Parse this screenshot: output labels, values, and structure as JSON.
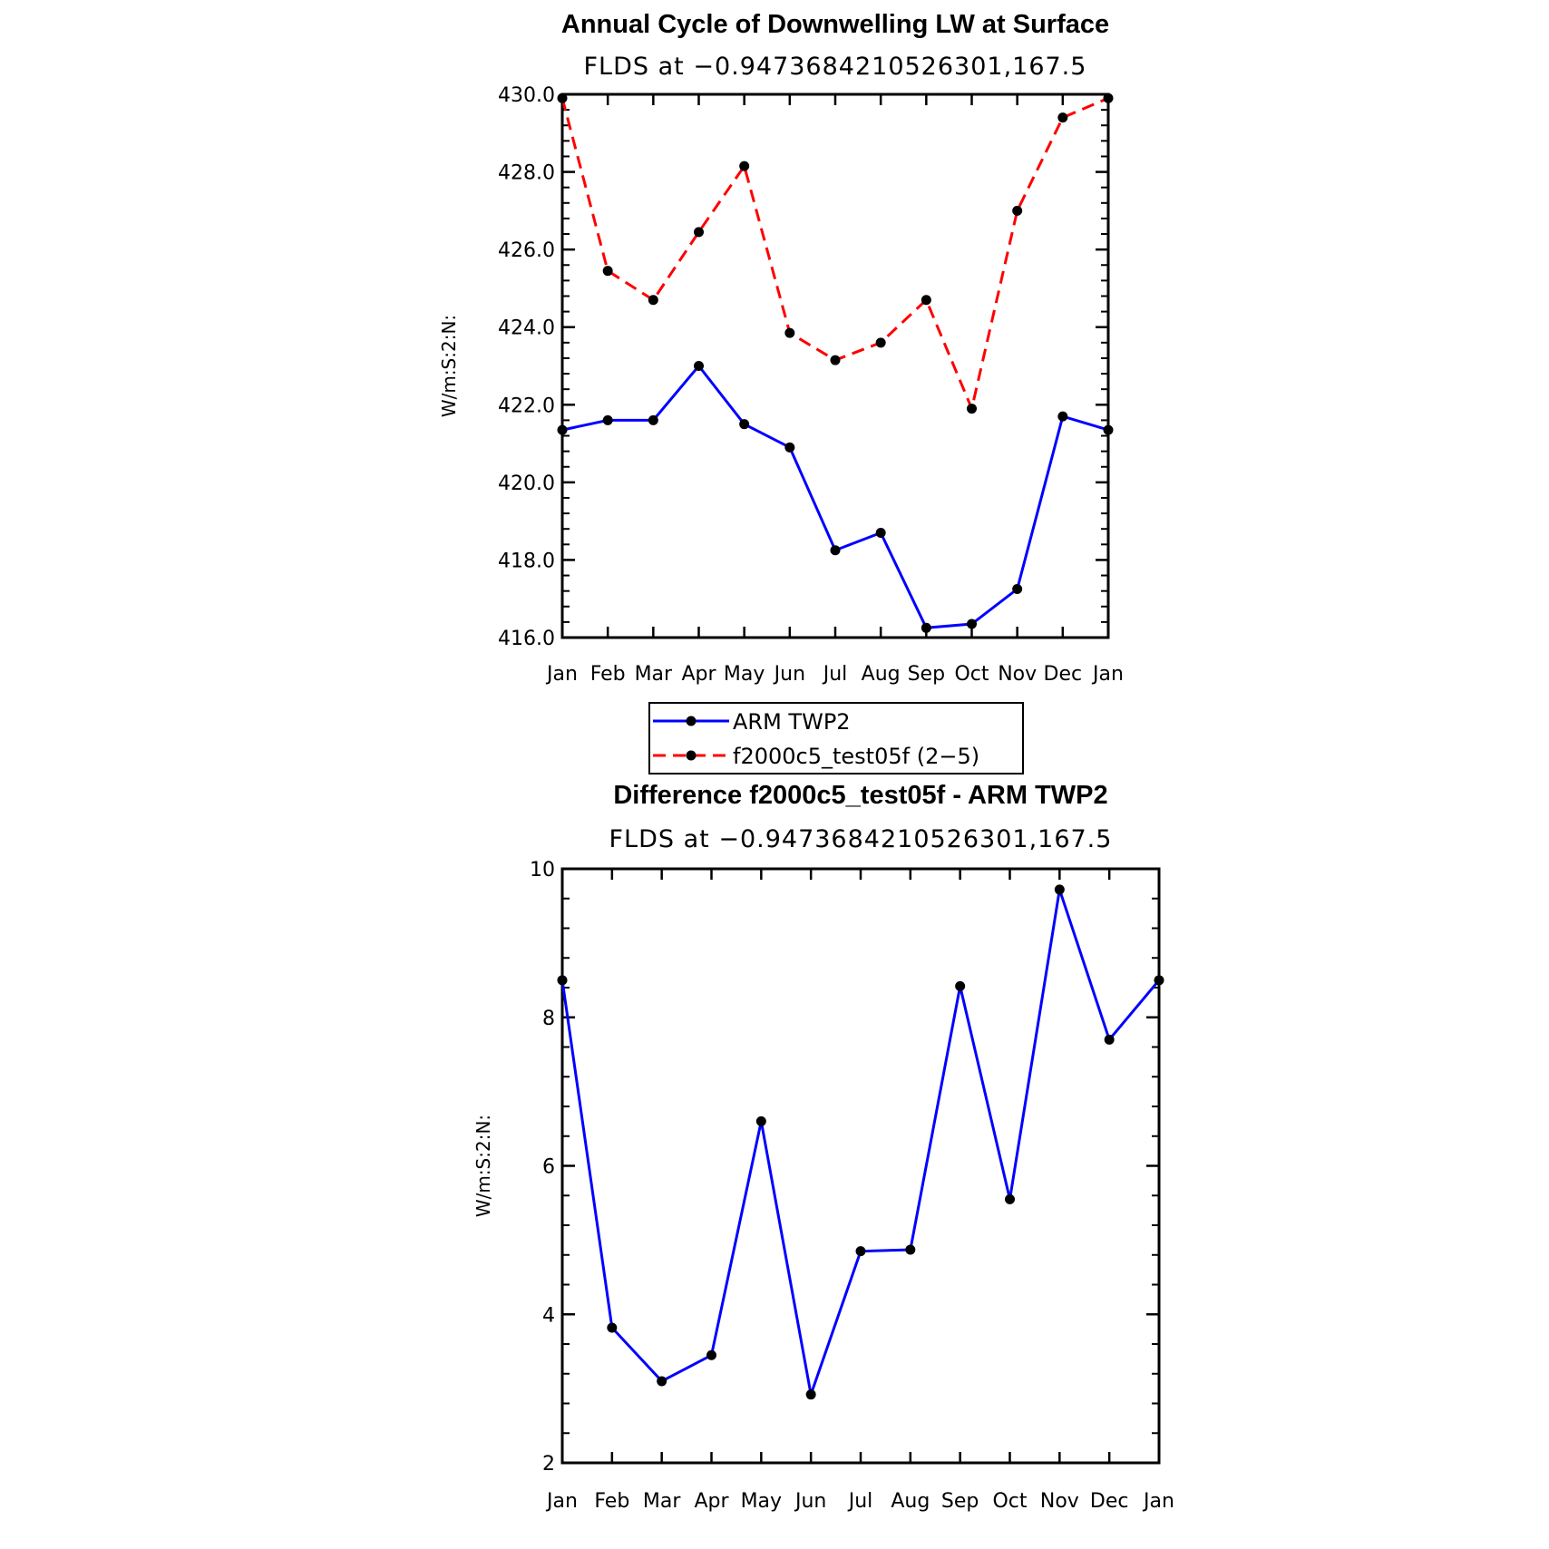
{
  "chart_data": [
    {
      "type": "line",
      "title": "Annual Cycle of Downwelling LW at Surface",
      "subtitle": "FLDS at −0.9473684210526301,167.5",
      "xlabel": "",
      "ylabel": "W/m:S:2:N:",
      "categories": [
        "Jan",
        "Feb",
        "Mar",
        "Apr",
        "May",
        "Jun",
        "Jul",
        "Aug",
        "Sep",
        "Oct",
        "Nov",
        "Dec",
        "Jan"
      ],
      "ylim": [
        416.0,
        430.0
      ],
      "yticks": [
        "416.0",
        "418.0",
        "420.0",
        "422.0",
        "424.0",
        "426.0",
        "428.0",
        "430.0"
      ],
      "grid": false,
      "legend": "below",
      "series": [
        {
          "name": "ARM TWP2",
          "color": "#0000ff",
          "dash": "solid",
          "values": [
            421.35,
            421.6,
            421.6,
            423.0,
            421.5,
            420.9,
            418.25,
            418.7,
            416.25,
            416.35,
            417.25,
            421.7,
            421.35
          ]
        },
        {
          "name": "f2000c5_test05f (2−5)",
          "color": "#ff0000",
          "dash": "dashed",
          "values": [
            429.9,
            425.45,
            424.7,
            426.45,
            428.15,
            423.85,
            423.15,
            423.6,
            424.7,
            421.9,
            427.0,
            429.4,
            429.9
          ]
        }
      ]
    },
    {
      "type": "line",
      "title": "Difference f2000c5_test05f - ARM TWP2",
      "subtitle": "FLDS at −0.9473684210526301,167.5",
      "xlabel": "",
      "ylabel": "W/m:S:2:N:",
      "categories": [
        "Jan",
        "Feb",
        "Mar",
        "Apr",
        "May",
        "Jun",
        "Jul",
        "Aug",
        "Sep",
        "Oct",
        "Nov",
        "Dec",
        "Jan"
      ],
      "ylim": [
        2,
        10
      ],
      "yticks": [
        "2",
        "4",
        "6",
        "8",
        "10"
      ],
      "grid": false,
      "series": [
        {
          "name": "",
          "color": "#0000ff",
          "dash": "solid",
          "values": [
            8.5,
            3.82,
            3.1,
            3.45,
            6.6,
            2.92,
            4.85,
            4.87,
            8.42,
            5.55,
            9.72,
            7.7,
            8.5
          ]
        }
      ]
    }
  ]
}
